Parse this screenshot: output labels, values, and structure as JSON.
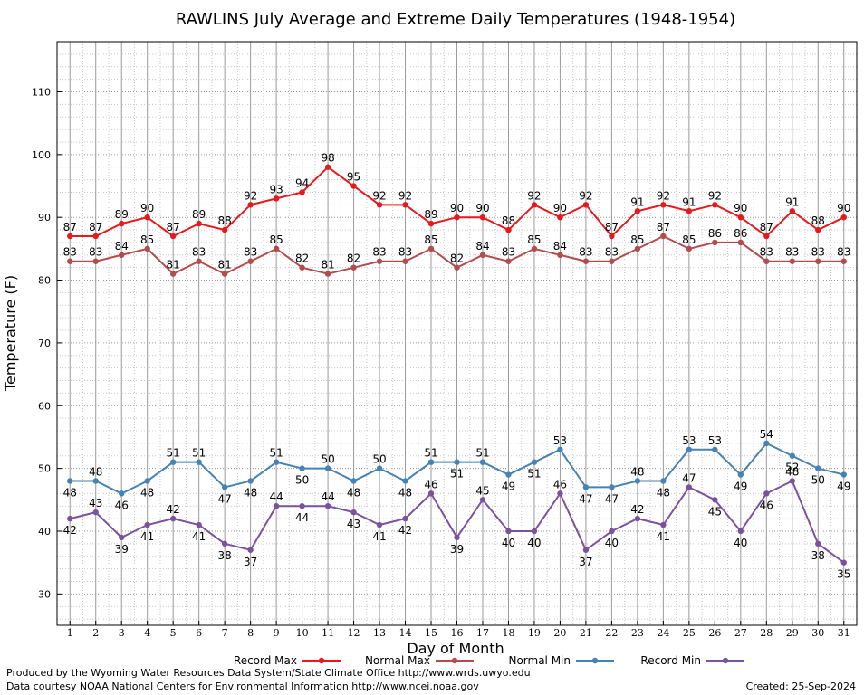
{
  "chart_data": {
    "type": "line",
    "title": "RAWLINS July Average and Extreme Daily Temperatures (1948-1954)",
    "xlabel": "Day of Month",
    "ylabel": "Temperature (F)",
    "xlim": [
      0.5,
      31.5
    ],
    "ylim": [
      25,
      118
    ],
    "yticks": [
      30,
      40,
      50,
      60,
      70,
      80,
      90,
      100,
      110
    ],
    "grid": true,
    "legend_position": "bottom",
    "categories": [
      1,
      2,
      3,
      4,
      5,
      6,
      7,
      8,
      9,
      10,
      11,
      12,
      13,
      14,
      15,
      16,
      17,
      18,
      19,
      20,
      21,
      22,
      23,
      24,
      25,
      26,
      27,
      28,
      29,
      30,
      31
    ],
    "series": [
      {
        "name": "Record Max",
        "color": "#e8191c",
        "values": [
          87,
          87,
          89,
          90,
          87,
          89,
          88,
          92,
          93,
          94,
          98,
          95,
          92,
          92,
          89,
          90,
          90,
          88,
          92,
          90,
          92,
          87,
          91,
          92,
          91,
          92,
          90,
          87,
          91,
          88,
          90
        ]
      },
      {
        "name": "Normal Max",
        "color": "#b34c4c",
        "values": [
          83,
          83,
          84,
          85,
          81,
          83,
          81,
          83,
          85,
          82,
          81,
          82,
          83,
          83,
          85,
          82,
          84,
          83,
          85,
          84,
          83,
          83,
          85,
          87,
          85,
          86,
          86,
          83,
          83,
          83,
          83
        ]
      },
      {
        "name": "Normal Min",
        "color": "#4682b4",
        "values": [
          48,
          48,
          46,
          48,
          51,
          51,
          47,
          48,
          51,
          50,
          50,
          48,
          50,
          48,
          51,
          51,
          51,
          49,
          51,
          53,
          47,
          47,
          48,
          48,
          53,
          53,
          49,
          54,
          52,
          50,
          49
        ]
      },
      {
        "name": "Record Min",
        "color": "#7b529e",
        "values": [
          42,
          43,
          39,
          41,
          42,
          41,
          38,
          37,
          44,
          44,
          44,
          43,
          41,
          42,
          46,
          39,
          45,
          40,
          40,
          46,
          37,
          40,
          42,
          41,
          47,
          45,
          40,
          46,
          48,
          38,
          35
        ]
      }
    ]
  },
  "footer": {
    "produced_by": "Produced by the Wyoming Water Resources Data System/State Climate Office http://www.wrds.uwyo.edu",
    "data_courtesy": "Data courtesy NOAA National Centers for Environmental Information http://www.ncei.noaa.gov",
    "created": "Created: 25-Sep-2024"
  }
}
